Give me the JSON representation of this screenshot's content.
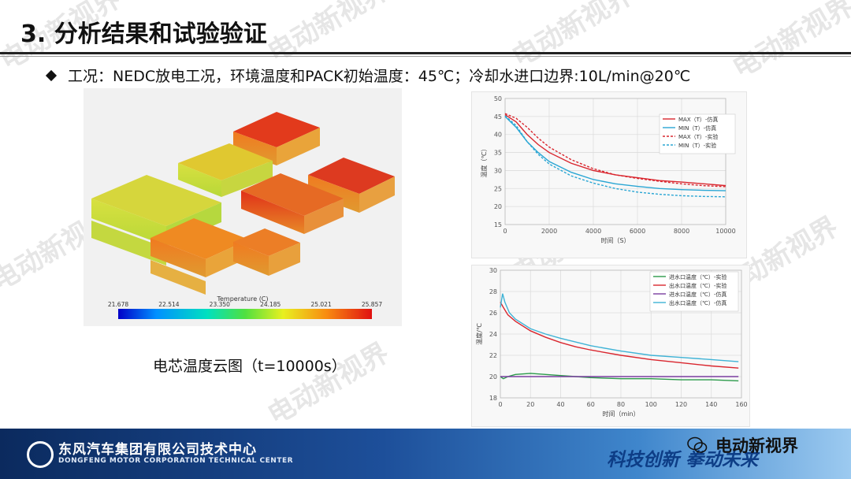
{
  "slide": {
    "title": "3. 分析结果和试验验证",
    "bullet": "工况：NEDC放电工况，环境温度和PACK初始温度：45℃；冷却水进口边界:10L/min@20℃",
    "caption": "电芯温度云图（t=10000s）",
    "watermark": "电动新视界"
  },
  "colors": {
    "sim_max": "#d9262e",
    "sim_min": "#2aa6d4",
    "exp_inlet": "#2b9a4a",
    "exp_outlet": "#d9262e",
    "sim_inlet": "#7a3ea0",
    "sim_outlet": "#3fb3d6"
  },
  "colorbar": {
    "label": "Temperature (C)",
    "ticks": [
      "21.678",
      "22.514",
      "23.350",
      "24.185",
      "25.021",
      "25.857"
    ]
  },
  "footer": {
    "company": "东风汽车集团有限公司技术中心",
    "company_en": "DONGFENG MOTOR CORPORATION TECHNICAL CENTER",
    "slogan": "科技创新 拳动未来",
    "channel": "电动新视界"
  },
  "chart_data": [
    {
      "type": "line",
      "ylabel": "温度（℃）",
      "xlabel": "时间（S）",
      "xlim": [
        0,
        10000
      ],
      "ylim": [
        15,
        50
      ],
      "xticks": [
        0,
        2000,
        4000,
        6000,
        8000,
        10000
      ],
      "yticks": [
        15,
        20,
        25,
        30,
        35,
        40,
        45,
        50
      ],
      "legend_position": "top-right",
      "grid": true,
      "series": [
        {
          "name": "MAX（T）-仿真",
          "style": "solid",
          "color": "#d9262e",
          "x": [
            0,
            500,
            1000,
            1500,
            2000,
            3000,
            4000,
            5000,
            6000,
            7000,
            8000,
            9000,
            10000
          ],
          "y": [
            45.5,
            43.5,
            40.0,
            37.2,
            35.0,
            32.0,
            30.0,
            28.8,
            28.0,
            27.2,
            26.8,
            26.3,
            25.8
          ]
        },
        {
          "name": "MIN（T）-仿真",
          "style": "solid",
          "color": "#2aa6d4",
          "x": [
            0,
            500,
            1000,
            1500,
            2000,
            3000,
            4000,
            5000,
            6000,
            7000,
            8000,
            9000,
            10000
          ],
          "y": [
            45.0,
            42.0,
            38.0,
            35.0,
            32.5,
            29.5,
            27.5,
            26.3,
            25.6,
            25.0,
            24.7,
            24.5,
            24.4
          ]
        },
        {
          "name": "MAX（T）-实验",
          "style": "dashed",
          "color": "#d9262e",
          "x": [
            0,
            500,
            1000,
            1500,
            2000,
            3000,
            4000,
            5000,
            6000,
            7000,
            8000,
            9000,
            10000
          ],
          "y": [
            45.8,
            44.5,
            42.0,
            39.0,
            36.5,
            33.0,
            30.5,
            28.8,
            27.8,
            27.0,
            26.3,
            25.8,
            25.5
          ]
        },
        {
          "name": "MIN（T）-实验",
          "style": "dashed",
          "color": "#2aa6d4",
          "x": [
            0,
            500,
            1000,
            1500,
            2000,
            3000,
            4000,
            5000,
            6000,
            7000,
            8000,
            9000,
            10000
          ],
          "y": [
            45.2,
            42.5,
            38.0,
            34.5,
            31.8,
            28.5,
            26.5,
            25.0,
            24.0,
            23.4,
            23.0,
            22.8,
            22.7
          ]
        }
      ]
    },
    {
      "type": "line",
      "ylabel": "温度/℃",
      "xlabel": "时间（min）",
      "xlim": [
        0,
        160
      ],
      "ylim": [
        18,
        30
      ],
      "xticks": [
        0,
        20,
        40,
        60,
        80,
        100,
        120,
        140,
        160
      ],
      "yticks": [
        18,
        20,
        22,
        24,
        26,
        28,
        30
      ],
      "legend_position": "top-right",
      "grid": true,
      "series": [
        {
          "name": "进水口温度（℃）-实验",
          "color": "#2b9a4a",
          "x": [
            0,
            2,
            5,
            10,
            20,
            30,
            40,
            50,
            60,
            80,
            100,
            120,
            140,
            158
          ],
          "y": [
            20.0,
            19.8,
            20.0,
            20.2,
            20.3,
            20.2,
            20.1,
            20.0,
            19.9,
            19.8,
            19.8,
            19.7,
            19.7,
            19.6
          ]
        },
        {
          "name": "出水口温度（℃）-实验",
          "color": "#d9262e",
          "x": [
            0,
            2,
            5,
            10,
            20,
            30,
            40,
            50,
            60,
            80,
            100,
            120,
            140,
            158
          ],
          "y": [
            27.0,
            26.5,
            25.8,
            25.2,
            24.3,
            23.7,
            23.2,
            22.8,
            22.5,
            22.0,
            21.6,
            21.3,
            21.0,
            20.8
          ]
        },
        {
          "name": "进水口温度（℃）-仿真",
          "color": "#7a3ea0",
          "x": [
            0,
            2,
            5,
            10,
            20,
            40,
            60,
            80,
            100,
            120,
            140,
            158
          ],
          "y": [
            20.0,
            20.0,
            20.0,
            20.0,
            20.0,
            20.0,
            20.0,
            20.0,
            20.0,
            20.0,
            20.0,
            20.0
          ]
        },
        {
          "name": "出水口温度（℃）-仿真",
          "color": "#3fb3d6",
          "x": [
            0,
            1.5,
            3,
            6,
            10,
            20,
            30,
            40,
            60,
            80,
            100,
            120,
            140,
            158
          ],
          "y": [
            26.5,
            27.8,
            27.0,
            26.0,
            25.4,
            24.5,
            24.0,
            23.6,
            22.9,
            22.4,
            22.0,
            21.8,
            21.6,
            21.4
          ]
        }
      ]
    }
  ]
}
